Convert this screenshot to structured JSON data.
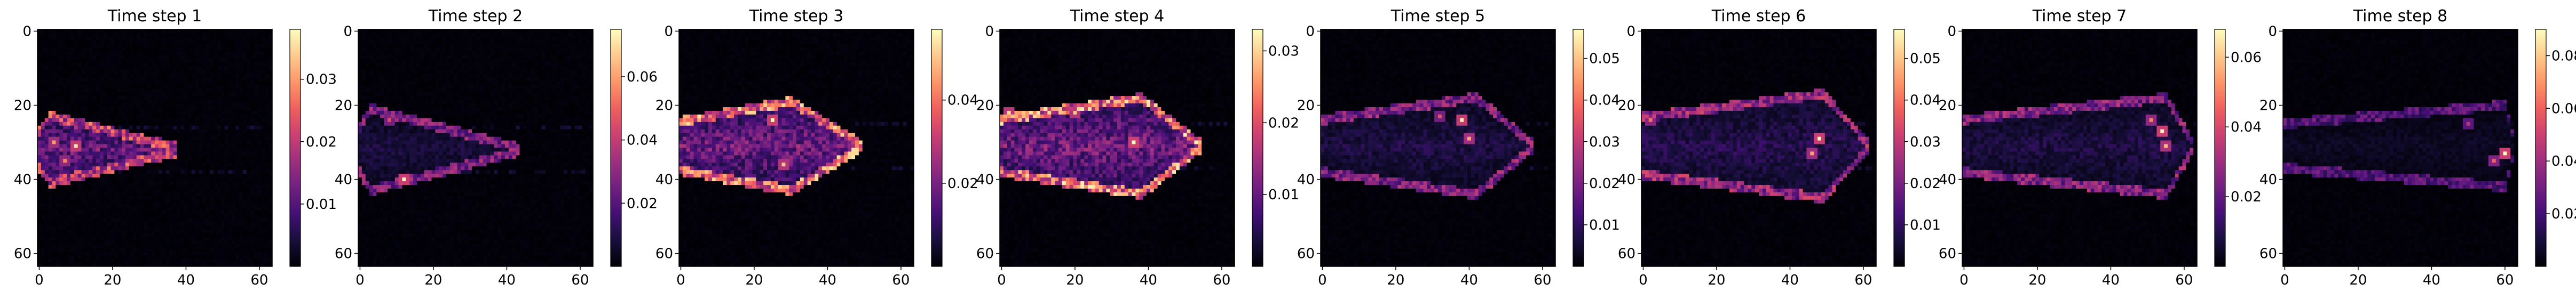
{
  "colormap": "magma",
  "colormap_stops": [
    "#000004",
    "#180f3d",
    "#440f76",
    "#721f81",
    "#9e2f7f",
    "#cd4071",
    "#f1605d",
    "#fd9668",
    "#feca8d",
    "#fcfdbf"
  ],
  "chart_data": [
    {
      "type": "heatmap",
      "title": "Time step 1",
      "xlim": [
        0,
        63
      ],
      "ylim": [
        63,
        0
      ],
      "x_ticks": [
        "0",
        "20",
        "40",
        "60"
      ],
      "y_ticks": [
        "0",
        "20",
        "40",
        "60"
      ],
      "colorbar": {
        "min": 0.0,
        "max": 0.038,
        "ticks": [
          0.01,
          0.02,
          0.03
        ],
        "tick_labels": [
          "0.01",
          "0.02",
          "0.03"
        ]
      },
      "plume": {
        "head_x": 3,
        "tail_x": 40,
        "center_y": 32,
        "half_height": 9,
        "edge_value": 0.024,
        "core_value": 0.017,
        "hot_spots": [
          [
            10,
            31,
            0.036
          ],
          [
            4,
            30,
            0.03
          ],
          [
            7,
            35,
            0.028
          ]
        ]
      }
    },
    {
      "type": "heatmap",
      "title": "Time step 2",
      "xlim": [
        0,
        63
      ],
      "ylim": [
        63,
        0
      ],
      "x_ticks": [
        "0",
        "20",
        "40",
        "60"
      ],
      "y_ticks": [
        "0",
        "20",
        "40",
        "60"
      ],
      "colorbar": {
        "min": 0.0,
        "max": 0.075,
        "ticks": [
          0.02,
          0.04,
          0.06
        ],
        "tick_labels": [
          "0.02",
          "0.04",
          "0.06"
        ]
      },
      "plume": {
        "head_x": 3,
        "tail_x": 45,
        "center_y": 32,
        "half_height": 11,
        "edge_value": 0.032,
        "core_value": 0.012,
        "hot_spots": [
          [
            12,
            40,
            0.074
          ],
          [
            8,
            24,
            0.045
          ]
        ]
      }
    },
    {
      "type": "heatmap",
      "title": "Time step 3",
      "xlim": [
        0,
        63
      ],
      "ylim": [
        63,
        0
      ],
      "x_ticks": [
        "0",
        "20",
        "40",
        "60"
      ],
      "y_ticks": [
        "0",
        "20",
        "40",
        "60"
      ],
      "colorbar": {
        "min": 0.0,
        "max": 0.057,
        "ticks": [
          0.02,
          0.04
        ],
        "tick_labels": [
          "0.02",
          "0.04"
        ]
      },
      "plume": {
        "head_x": 30,
        "tail_x": 50,
        "center_y": 31,
        "half_height": 12,
        "edge_value": 0.045,
        "core_value": 0.027,
        "hot_spots": [
          [
            25,
            24,
            0.056
          ],
          [
            28,
            36,
            0.05
          ]
        ]
      }
    },
    {
      "type": "heatmap",
      "title": "Time step 4",
      "xlim": [
        0,
        63
      ],
      "ylim": [
        63,
        0
      ],
      "x_ticks": [
        "0",
        "20",
        "40",
        "60"
      ],
      "y_ticks": [
        "0",
        "20",
        "40",
        "60"
      ],
      "colorbar": {
        "min": 0.0,
        "max": 0.033,
        "ticks": [
          0.01,
          0.02,
          0.03
        ],
        "tick_labels": [
          "0.01",
          "0.02",
          "0.03"
        ]
      },
      "plume": {
        "head_x": 38,
        "tail_x": 55,
        "center_y": 31,
        "half_height": 13,
        "edge_value": 0.027,
        "core_value": 0.016,
        "hot_spots": [
          [
            36,
            30,
            0.033
          ],
          [
            2,
            22,
            0.03
          ],
          [
            20,
            22,
            0.029
          ]
        ]
      }
    },
    {
      "type": "heatmap",
      "title": "Time step 5",
      "xlim": [
        0,
        63
      ],
      "ylim": [
        63,
        0
      ],
      "x_ticks": [
        "0",
        "20",
        "40",
        "60"
      ],
      "y_ticks": [
        "0",
        "20",
        "40",
        "60"
      ],
      "colorbar": {
        "min": 0.0,
        "max": 0.057,
        "ticks": [
          0.01,
          0.02,
          0.03,
          0.04,
          0.05
        ],
        "tick_labels": [
          "0.01",
          "0.02",
          "0.03",
          "0.04",
          "0.05"
        ]
      },
      "plume": {
        "head_x": 42,
        "tail_x": 58,
        "center_y": 31,
        "half_height": 13,
        "edge_value": 0.025,
        "core_value": 0.01,
        "hot_spots": [
          [
            38,
            24,
            0.055
          ],
          [
            40,
            29,
            0.046
          ],
          [
            32,
            23,
            0.035
          ]
        ]
      }
    },
    {
      "type": "heatmap",
      "title": "Time step 6",
      "xlim": [
        0,
        63
      ],
      "ylim": [
        63,
        0
      ],
      "x_ticks": [
        "0",
        "20",
        "40",
        "60"
      ],
      "y_ticks": [
        "0",
        "20",
        "40",
        "60"
      ],
      "colorbar": {
        "min": 0.0,
        "max": 0.057,
        "ticks": [
          0.01,
          0.02,
          0.03,
          0.04,
          0.05
        ],
        "tick_labels": [
          "0.01",
          "0.02",
          "0.03",
          "0.04",
          "0.05"
        ]
      },
      "plume": {
        "head_x": 49,
        "tail_x": 62,
        "center_y": 31,
        "half_height": 14,
        "edge_value": 0.028,
        "core_value": 0.012,
        "hot_spots": [
          [
            48,
            29,
            0.056
          ],
          [
            46,
            33,
            0.045
          ],
          [
            2,
            24,
            0.04
          ]
        ]
      }
    },
    {
      "type": "heatmap",
      "title": "Time step 7",
      "xlim": [
        0,
        63
      ],
      "ylim": [
        63,
        0
      ],
      "x_ticks": [
        "0",
        "20",
        "40",
        "60"
      ],
      "y_ticks": [
        "0",
        "20",
        "40",
        "60"
      ],
      "colorbar": {
        "min": 0.0,
        "max": 0.068,
        "ticks": [
          0.02,
          0.04,
          0.06
        ],
        "tick_labels": [
          "0.02",
          "0.04",
          "0.06"
        ]
      },
      "plume": {
        "head_x": 55,
        "tail_x": 63,
        "center_y": 31,
        "half_height": 13,
        "edge_value": 0.03,
        "core_value": 0.012,
        "hot_spots": [
          [
            54,
            27,
            0.067
          ],
          [
            55,
            31,
            0.058
          ],
          [
            51,
            24,
            0.05
          ]
        ]
      }
    },
    {
      "type": "heatmap",
      "title": "Time step 8",
      "xlim": [
        0,
        63
      ],
      "ylim": [
        63,
        0
      ],
      "x_ticks": [
        "0",
        "20",
        "40",
        "60"
      ],
      "y_ticks": [
        "0",
        "20",
        "40",
        "60"
      ],
      "colorbar": {
        "min": 0.0,
        "max": 0.09,
        "ticks": [
          0.02,
          0.04,
          0.06,
          0.08
        ],
        "tick_labels": [
          "0.02",
          "0.04",
          "0.06",
          "0.08"
        ]
      },
      "plume": {
        "head_x": 60,
        "tail_x": 63,
        "center_y": 31,
        "half_height": 11,
        "edge_value": 0.028,
        "core_value": 0.008,
        "hot_spots": [
          [
            60,
            33,
            0.09
          ],
          [
            57,
            35,
            0.06
          ],
          [
            50,
            25,
            0.045
          ]
        ]
      }
    }
  ]
}
